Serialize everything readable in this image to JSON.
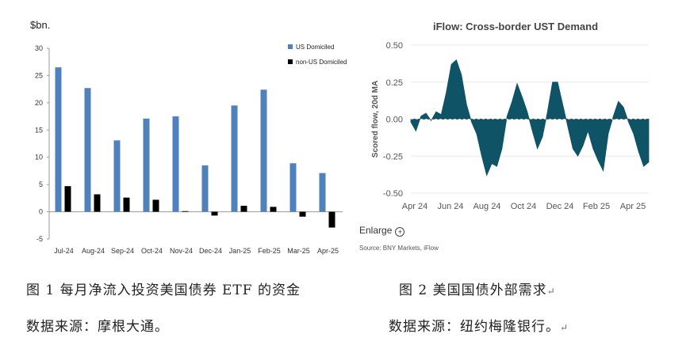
{
  "chart_data": [
    {
      "type": "bar",
      "title": "",
      "ylabel": "$bn.",
      "categories": [
        "Jul-24",
        "Aug-24",
        "Sep-24",
        "Oct-24",
        "Nov-24",
        "Dec-24",
        "Jan-25",
        "Feb-25",
        "Mar-25",
        "Apr-25"
      ],
      "series": [
        {
          "name": "US Domiciled",
          "color": "#4f81bd",
          "values": [
            26.5,
            22.7,
            13.1,
            17.1,
            17.5,
            8.5,
            19.5,
            22.4,
            8.9,
            7.1
          ]
        },
        {
          "name": "non-US Domiciled",
          "color": "#000000",
          "values": [
            4.7,
            3.2,
            2.6,
            2.2,
            0,
            -0.7,
            1.1,
            0.9,
            -0.9,
            -2.9
          ]
        }
      ],
      "ylim": [
        -5,
        30
      ],
      "yticks": [
        "30",
        "25",
        "20",
        "15",
        "10",
        "5",
        "0",
        "-5"
      ],
      "legend": "top-right",
      "grid": false
    },
    {
      "type": "area",
      "title": "iFlow: Cross-border UST Demand",
      "ylabel": "Scored flow, 20d MA",
      "color": "#0f5366",
      "ylim": [
        -0.5,
        0.5
      ],
      "yticks": [
        "0.50",
        "0.25",
        "0.00",
        "-0.25",
        "-0.50"
      ],
      "xticks": [
        "Apr 24",
        "Jun 24",
        "Aug 24",
        "Oct 24",
        "Dec 24",
        "Feb 25",
        "Apr 25"
      ],
      "x": [
        "Apr 24",
        "Apr 24",
        "May 24",
        "May 24",
        "May 24",
        "May 24",
        "May 24",
        "Jun 24",
        "Jun 24",
        "Jun 24",
        "Jun 24",
        "Jul 24",
        "Jul 24",
        "Jul 24",
        "Jul 24",
        "Aug 24",
        "Aug 24",
        "Aug 24",
        "Aug 24",
        "Sep 24",
        "Sep 24",
        "Sep 24",
        "Sep 24",
        "Oct 24",
        "Oct 24",
        "Oct 24",
        "Oct 24",
        "Nov 24",
        "Nov 24",
        "Nov 24",
        "Nov 24",
        "Dec 24",
        "Dec 24",
        "Dec 24",
        "Dec 24",
        "Jan 25",
        "Jan 25",
        "Jan 25",
        "Jan 25",
        "Feb 25",
        "Feb 25",
        "Feb 25",
        "Feb 25",
        "Mar 25",
        "Mar 25",
        "Mar 25",
        "Mar 25",
        "Apr 25"
      ],
      "values": [
        -0.02,
        -0.08,
        0.02,
        0.04,
        -0.01,
        0.05,
        0.03,
        0.18,
        0.37,
        0.4,
        0.3,
        0.1,
        -0.02,
        -0.1,
        -0.25,
        -0.38,
        -0.3,
        -0.32,
        -0.2,
        0.02,
        0.12,
        0.24,
        0.15,
        0.05,
        -0.08,
        -0.2,
        -0.12,
        0.05,
        0.25,
        0.25,
        0.1,
        -0.05,
        -0.2,
        -0.25,
        -0.18,
        -0.08,
        -0.2,
        -0.28,
        -0.35,
        -0.1,
        0.02,
        0.12,
        0.08,
        -0.02,
        -0.1,
        -0.22,
        -0.32,
        -0.29
      ],
      "source": "Source: BNY Markets, iFlow"
    }
  ],
  "ui": {
    "enlarge_label": "Enlarge",
    "enlarge_icon": "plus-circle-icon"
  },
  "captions": {
    "fig1_title": "图 1  每月净流入投资美国债券 ETF 的资金",
    "fig1_source": "数据来源：摩根大通。",
    "fig2_title": "图 2  美国国债外部需求",
    "fig2_source": "数据来源：纽约梅隆银行。",
    "paragraph_mark": "↵"
  }
}
